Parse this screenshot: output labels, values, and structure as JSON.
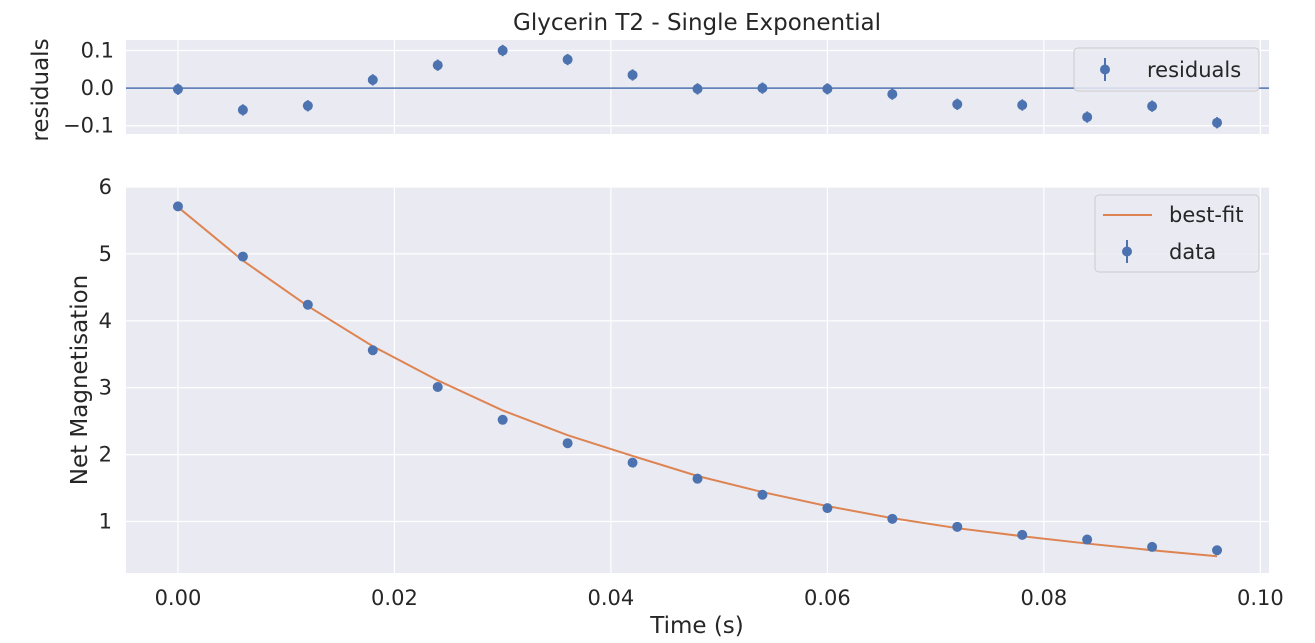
{
  "chart_data": [
    {
      "type": "scatter",
      "title": "Glycerin T2 - Single Exponential",
      "xlabel": "",
      "ylabel": "residuals",
      "xlim": [
        -0.0048,
        0.1008
      ],
      "ylim": [
        -0.122,
        0.128
      ],
      "yticks": [
        0.1,
        0.0,
        -0.1
      ],
      "ytick_labels": [
        "0.1",
        "0.0",
        "−0.1"
      ],
      "xticks": [
        0.0,
        0.02,
        0.04,
        0.06,
        0.08,
        0.1
      ],
      "grid": true,
      "legend": "top-right",
      "zero_line": 0,
      "series": [
        {
          "name": "residuals",
          "color": "#4C72B0",
          "x": [
            0.0,
            0.006,
            0.012,
            0.018,
            0.024,
            0.03,
            0.036,
            0.042,
            0.048,
            0.054,
            0.06,
            0.066,
            0.072,
            0.078,
            0.084,
            0.09,
            0.096
          ],
          "y": [
            -0.003,
            -0.058,
            -0.047,
            0.022,
            0.061,
            0.1,
            0.076,
            0.035,
            -0.002,
            0.0,
            -0.002,
            -0.016,
            -0.043,
            -0.045,
            -0.077,
            -0.048,
            -0.092
          ],
          "yerr": [
            0.015,
            0.015,
            0.015,
            0.015,
            0.015,
            0.015,
            0.015,
            0.015,
            0.015,
            0.015,
            0.015,
            0.015,
            0.015,
            0.015,
            0.015,
            0.015,
            0.015
          ]
        }
      ]
    },
    {
      "type": "scatter",
      "title": "",
      "xlabel": "Time (s)",
      "ylabel": "Net Magnetisation",
      "xlim": [
        -0.0048,
        0.1008
      ],
      "ylim": [
        0.23,
        6.0
      ],
      "yticks": [
        1,
        2,
        3,
        4,
        5,
        6
      ],
      "ytick_labels": [
        "1",
        "2",
        "3",
        "4",
        "5",
        "6"
      ],
      "xticks": [
        0.0,
        0.02,
        0.04,
        0.06,
        0.08,
        0.1
      ],
      "xtick_labels": [
        "0.00",
        "0.02",
        "0.04",
        "0.06",
        "0.08",
        "0.10"
      ],
      "grid": true,
      "legend": "top-right",
      "series": [
        {
          "name": "best-fit",
          "kind": "line",
          "color": "#DD8452",
          "x": [
            0.0,
            0.006,
            0.012,
            0.018,
            0.024,
            0.03,
            0.036,
            0.042,
            0.048,
            0.054,
            0.06,
            0.066,
            0.072,
            0.078,
            0.084,
            0.09,
            0.096
          ],
          "y": [
            5.7,
            4.9,
            4.22,
            3.62,
            3.11,
            2.66,
            2.29,
            1.98,
            1.68,
            1.44,
            1.23,
            1.05,
            0.9,
            0.78,
            0.67,
            0.57,
            0.48
          ]
        },
        {
          "name": "data",
          "kind": "points",
          "color": "#4C72B0",
          "x": [
            0.0,
            0.006,
            0.012,
            0.018,
            0.024,
            0.03,
            0.036,
            0.042,
            0.048,
            0.054,
            0.06,
            0.066,
            0.072,
            0.078,
            0.084,
            0.09,
            0.096
          ],
          "y": [
            5.71,
            4.96,
            4.24,
            3.56,
            3.01,
            2.52,
            2.17,
            1.88,
            1.64,
            1.4,
            1.2,
            1.04,
            0.92,
            0.8,
            0.73,
            0.62,
            0.57
          ]
        }
      ]
    }
  ]
}
